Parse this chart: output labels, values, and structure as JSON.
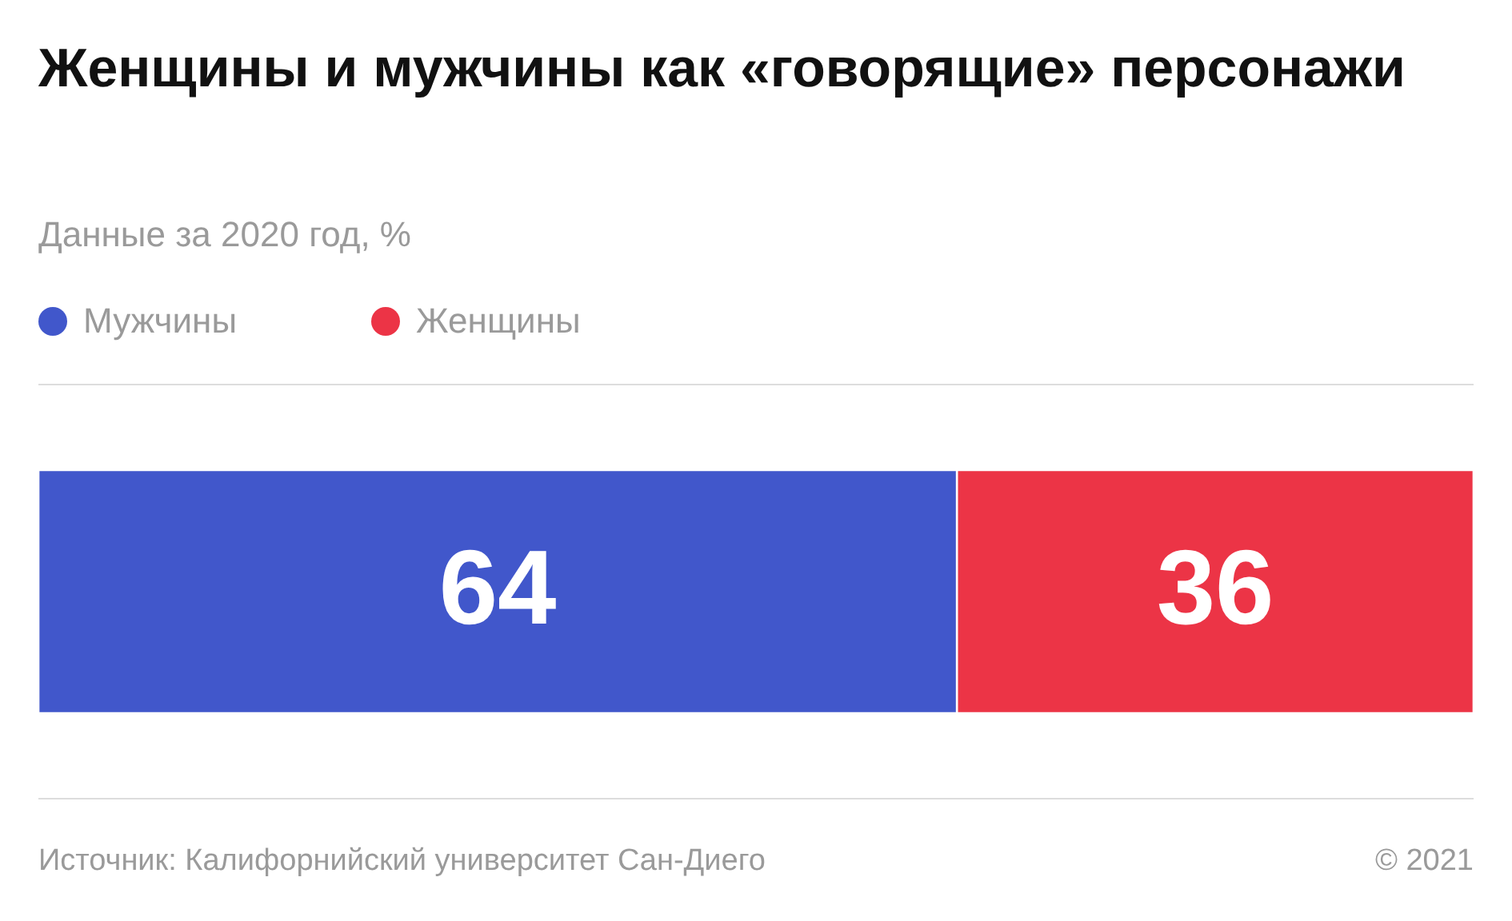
{
  "chart_data": {
    "type": "bar",
    "title": "Женщины и мужчины как «говорящие» персонажи",
    "subtitle": "Данные за 2020 год, %",
    "orientation": "horizontal",
    "stacked": true,
    "categories": [
      null
    ],
    "series": [
      {
        "name": "Мужчины",
        "color": "#4157cb",
        "values": [
          64
        ]
      },
      {
        "name": "Женщины",
        "color": "#ec3446",
        "values": [
          36
        ]
      }
    ],
    "data_labels": true,
    "legend": "top left",
    "annotations": [
      "Источник: Калифорнийский университет Сан-Диего",
      "© 2021"
    ]
  }
}
